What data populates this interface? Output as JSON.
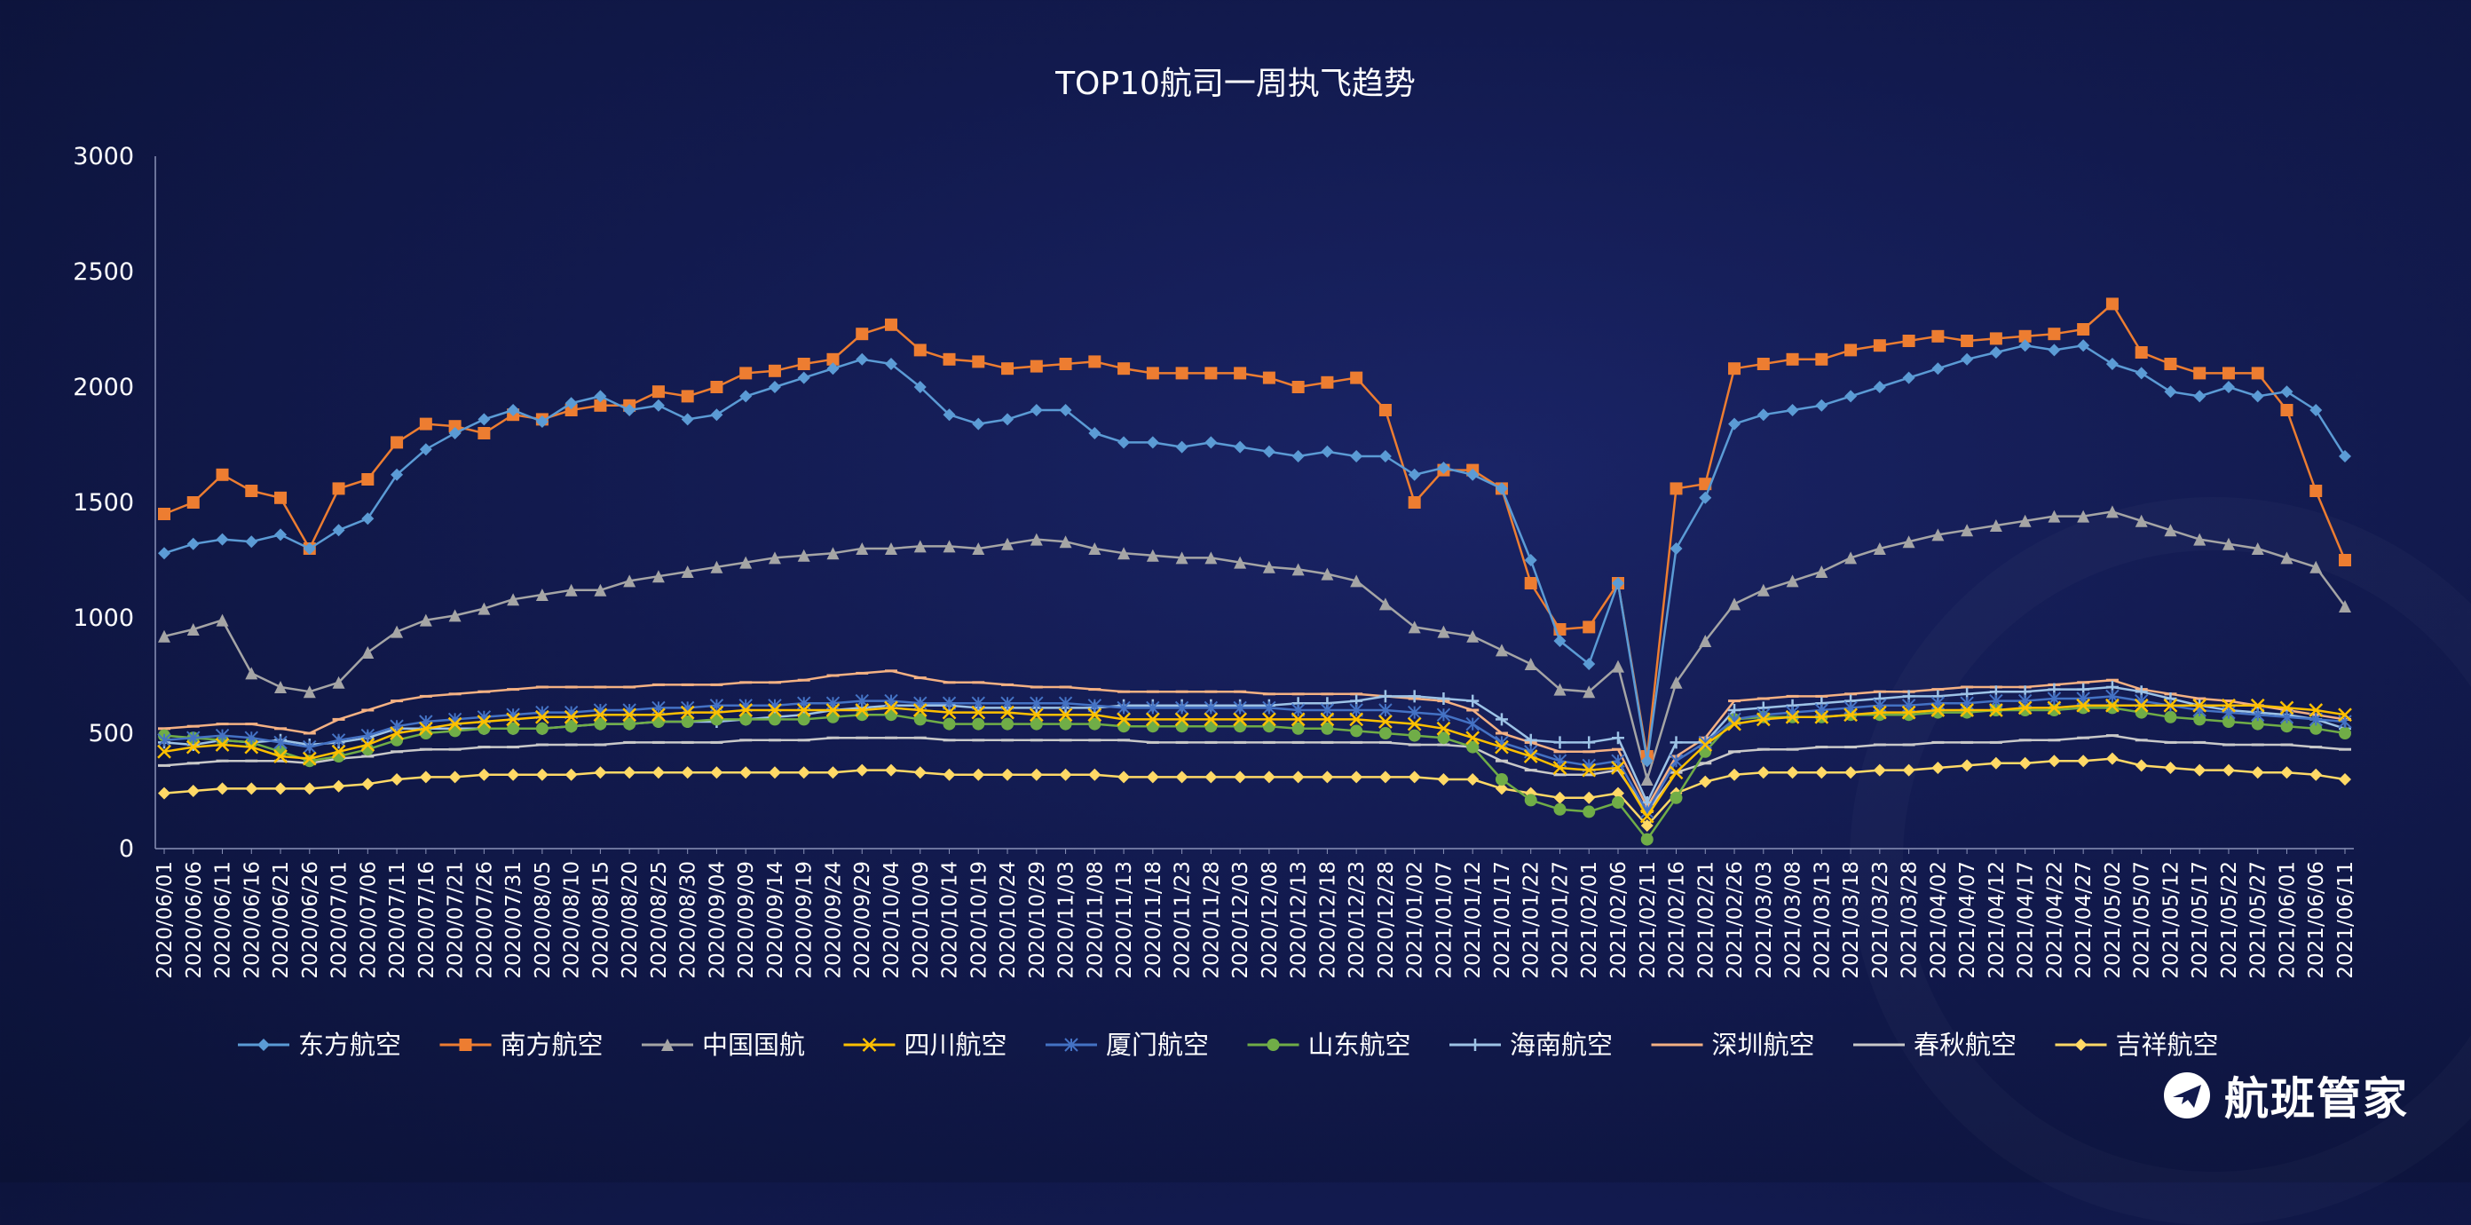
{
  "chart_data": {
    "type": "line",
    "title": "TOP10航司一周执飞趋势",
    "xlabel": "",
    "ylabel": "",
    "ylim": [
      0,
      3000
    ],
    "yticks": [
      0,
      500,
      1000,
      1500,
      2000,
      2500,
      3000
    ],
    "x_tick_labels": [
      "2020/06/01",
      "2020/06/06",
      "2020/06/11",
      "2020/06/16",
      "2020/06/21",
      "2020/06/26",
      "2020/07/01",
      "2020/07/06",
      "2020/07/11",
      "2020/07/16",
      "2020/07/21",
      "2020/07/26",
      "2020/07/31",
      "2020/08/05",
      "2020/08/10",
      "2020/08/15",
      "2020/08/20",
      "2020/08/25",
      "2020/08/30",
      "2020/09/04",
      "2020/09/09",
      "2020/09/14",
      "2020/09/19",
      "2020/09/24",
      "2020/09/29",
      "2020/10/04",
      "2020/10/09",
      "2020/10/14",
      "2020/10/19",
      "2020/10/24",
      "2020/10/29",
      "2020/11/03",
      "2020/11/08",
      "2020/11/13",
      "2020/11/18",
      "2020/11/23",
      "2020/11/28",
      "2020/12/03",
      "2020/12/08",
      "2020/12/13",
      "2020/12/18",
      "2020/12/23",
      "2020/12/28",
      "2021/01/02",
      "2021/01/07",
      "2021/01/12",
      "2021/01/17",
      "2021/01/22",
      "2021/01/27",
      "2021/02/01",
      "2021/02/06",
      "2021/02/11",
      "2021/02/16",
      "2021/02/21",
      "2021/02/26",
      "2021/03/03",
      "2021/03/08",
      "2021/03/13",
      "2021/03/18",
      "2021/03/23",
      "2021/03/28",
      "2021/04/02",
      "2021/04/07",
      "2021/04/12",
      "2021/04/17",
      "2021/04/22",
      "2021/04/27",
      "2021/05/02",
      "2021/05/07",
      "2021/05/12",
      "2021/05/17",
      "2021/05/22",
      "2021/05/27",
      "2021/06/01",
      "2021/06/06",
      "2021/06/11"
    ],
    "legend_position": "bottom",
    "grid": false,
    "x": [
      "2020/06/01",
      "2020/06/06",
      "2020/06/11",
      "2020/06/16",
      "2020/06/21",
      "2020/06/26",
      "2020/07/01",
      "2020/07/06",
      "2020/07/11",
      "2020/07/16",
      "2020/07/21",
      "2020/07/26",
      "2020/07/31",
      "2020/08/05",
      "2020/08/10",
      "2020/08/15",
      "2020/08/20",
      "2020/08/25",
      "2020/08/30",
      "2020/09/04",
      "2020/09/09",
      "2020/09/14",
      "2020/09/19",
      "2020/09/24",
      "2020/09/29",
      "2020/10/04",
      "2020/10/09",
      "2020/10/14",
      "2020/10/19",
      "2020/10/24",
      "2020/10/29",
      "2020/11/03",
      "2020/11/08",
      "2020/11/13",
      "2020/11/18",
      "2020/11/23",
      "2020/11/28",
      "2020/12/03",
      "2020/12/08",
      "2020/12/13",
      "2020/12/18",
      "2020/12/23",
      "2020/12/28",
      "2021/01/02",
      "2021/01/07",
      "2021/01/12",
      "2021/01/17",
      "2021/01/22",
      "2021/01/27",
      "2021/02/01",
      "2021/02/06",
      "2021/02/11",
      "2021/02/16",
      "2021/02/21",
      "2021/02/26",
      "2021/03/03",
      "2021/03/08",
      "2021/03/13",
      "2021/03/18",
      "2021/03/23",
      "2021/03/28",
      "2021/04/02",
      "2021/04/07",
      "2021/04/12",
      "2021/04/17",
      "2021/04/22",
      "2021/04/27",
      "2021/05/02",
      "2021/05/07",
      "2021/05/12",
      "2021/05/17",
      "2021/05/22",
      "2021/05/27",
      "2021/06/01",
      "2021/06/06",
      "2021/06/11"
    ],
    "series": [
      {
        "name": "东方航空",
        "color": "#5b9bd5",
        "marker": "diamond",
        "values": [
          1280,
          1320,
          1340,
          1330,
          1360,
          1300,
          1380,
          1430,
          1620,
          1730,
          1800,
          1860,
          1900,
          1850,
          1930,
          1960,
          1900,
          1920,
          1860,
          1880,
          1960,
          2000,
          2040,
          2080,
          2120,
          2100,
          2000,
          1880,
          1840,
          1860,
          1900,
          1900,
          1800,
          1760,
          1760,
          1740,
          1760,
          1740,
          1720,
          1700,
          1720,
          1700,
          1700,
          1620,
          1650,
          1620,
          1560,
          1250,
          900,
          800,
          1150,
          380,
          1300,
          1520,
          1840,
          1880,
          1900,
          1920,
          1960,
          2000,
          2040,
          2080,
          2120,
          2150,
          2180,
          2160,
          2180,
          2100,
          2060,
          1980,
          1960,
          2000,
          1960,
          1980,
          1900,
          1700
        ]
      },
      {
        "name": "南方航空",
        "color": "#ed7d31",
        "marker": "square",
        "values": [
          1450,
          1500,
          1620,
          1550,
          1520,
          1300,
          1560,
          1600,
          1760,
          1840,
          1830,
          1800,
          1880,
          1860,
          1900,
          1920,
          1920,
          1980,
          1960,
          2000,
          2060,
          2070,
          2100,
          2120,
          2230,
          2270,
          2160,
          2120,
          2110,
          2080,
          2090,
          2100,
          2110,
          2080,
          2060,
          2060,
          2060,
          2060,
          2040,
          2000,
          2020,
          2040,
          1900,
          1500,
          1640,
          1640,
          1560,
          1150,
          950,
          960,
          1150,
          400,
          1560,
          1580,
          2080,
          2100,
          2120,
          2120,
          2160,
          2180,
          2200,
          2220,
          2200,
          2210,
          2220,
          2230,
          2250,
          2360,
          2150,
          2100,
          2060,
          2060,
          2060,
          1900,
          1550,
          1250
        ]
      },
      {
        "name": "中国国航",
        "color": "#a5a5a5",
        "marker": "triangle",
        "values": [
          920,
          950,
          990,
          760,
          700,
          680,
          720,
          850,
          940,
          990,
          1010,
          1040,
          1080,
          1100,
          1120,
          1120,
          1160,
          1180,
          1200,
          1220,
          1240,
          1260,
          1270,
          1280,
          1300,
          1300,
          1310,
          1310,
          1300,
          1320,
          1340,
          1330,
          1300,
          1280,
          1270,
          1260,
          1260,
          1240,
          1220,
          1210,
          1190,
          1160,
          1060,
          960,
          940,
          920,
          860,
          800,
          690,
          680,
          790,
          300,
          720,
          900,
          1060,
          1120,
          1160,
          1200,
          1260,
          1300,
          1330,
          1360,
          1380,
          1400,
          1420,
          1440,
          1440,
          1460,
          1420,
          1380,
          1340,
          1320,
          1300,
          1260,
          1220,
          1050
        ]
      },
      {
        "name": "四川航空",
        "color": "#ffc000",
        "marker": "x",
        "values": [
          420,
          440,
          450,
          440,
          400,
          390,
          420,
          450,
          500,
          520,
          540,
          550,
          560,
          570,
          570,
          580,
          580,
          580,
          590,
          590,
          600,
          600,
          600,
          600,
          600,
          610,
          600,
          590,
          590,
          590,
          580,
          580,
          580,
          560,
          560,
          560,
          560,
          560,
          560,
          560,
          560,
          560,
          550,
          540,
          520,
          480,
          440,
          400,
          350,
          340,
          350,
          140,
          330,
          450,
          540,
          560,
          570,
          570,
          580,
          590,
          590,
          600,
          600,
          600,
          610,
          610,
          620,
          620,
          620,
          620,
          620,
          620,
          620,
          610,
          600,
          580
        ]
      },
      {
        "name": "厦门航空",
        "color": "#4472c4",
        "marker": "asterisk",
        "values": [
          470,
          480,
          490,
          480,
          460,
          440,
          470,
          490,
          530,
          550,
          560,
          570,
          580,
          590,
          590,
          600,
          600,
          610,
          610,
          620,
          620,
          620,
          630,
          630,
          640,
          640,
          630,
          630,
          630,
          630,
          630,
          630,
          620,
          610,
          610,
          610,
          610,
          610,
          610,
          600,
          600,
          600,
          600,
          590,
          580,
          540,
          460,
          420,
          380,
          360,
          380,
          160,
          380,
          460,
          560,
          580,
          590,
          600,
          610,
          620,
          620,
          630,
          630,
          640,
          640,
          650,
          650,
          660,
          640,
          620,
          600,
          590,
          580,
          570,
          560,
          550
        ]
      },
      {
        "name": "山东航空",
        "color": "#70ad47",
        "marker": "circle",
        "values": [
          490,
          480,
          470,
          460,
          420,
          380,
          400,
          430,
          470,
          500,
          510,
          520,
          520,
          520,
          530,
          540,
          540,
          550,
          550,
          560,
          560,
          560,
          560,
          570,
          580,
          580,
          560,
          540,
          540,
          540,
          540,
          540,
          540,
          530,
          530,
          530,
          530,
          530,
          530,
          520,
          520,
          510,
          500,
          490,
          480,
          440,
          300,
          210,
          170,
          160,
          200,
          40,
          220,
          420,
          560,
          570,
          570,
          570,
          580,
          580,
          580,
          590,
          590,
          600,
          600,
          600,
          610,
          610,
          590,
          570,
          560,
          550,
          540,
          530,
          520,
          500
        ]
      },
      {
        "name": "海南航空",
        "color": "#9dc3e6",
        "marker": "plus",
        "values": [
          460,
          450,
          470,
          460,
          470,
          450,
          460,
          480,
          520,
          520,
          520,
          520,
          520,
          520,
          530,
          540,
          540,
          550,
          550,
          550,
          560,
          570,
          580,
          600,
          610,
          620,
          620,
          620,
          610,
          610,
          610,
          610,
          610,
          620,
          620,
          620,
          620,
          620,
          620,
          630,
          630,
          640,
          660,
          660,
          650,
          640,
          560,
          470,
          460,
          460,
          480,
          200,
          460,
          460,
          600,
          610,
          620,
          630,
          640,
          650,
          660,
          660,
          670,
          680,
          680,
          690,
          690,
          700,
          680,
          650,
          620,
          600,
          590,
          580,
          560,
          520
        ]
      },
      {
        "name": "深圳航空",
        "color": "#f4b183",
        "marker": "dash",
        "values": [
          520,
          530,
          540,
          540,
          520,
          500,
          560,
          600,
          640,
          660,
          670,
          680,
          690,
          700,
          700,
          700,
          700,
          710,
          710,
          710,
          720,
          720,
          730,
          750,
          760,
          770,
          740,
          720,
          720,
          710,
          700,
          700,
          690,
          680,
          680,
          680,
          680,
          680,
          670,
          670,
          670,
          670,
          660,
          650,
          640,
          600,
          500,
          460,
          420,
          420,
          430,
          180,
          400,
          480,
          640,
          650,
          660,
          660,
          670,
          680,
          680,
          690,
          700,
          700,
          700,
          710,
          720,
          730,
          690,
          670,
          650,
          640,
          620,
          600,
          580,
          560
        ]
      },
      {
        "name": "春秋航空",
        "color": "#c9c9c9",
        "marker": "dash",
        "values": [
          360,
          370,
          380,
          380,
          380,
          370,
          390,
          400,
          420,
          430,
          430,
          440,
          440,
          450,
          450,
          450,
          460,
          460,
          460,
          460,
          470,
          470,
          470,
          480,
          480,
          480,
          480,
          470,
          470,
          470,
          470,
          470,
          470,
          470,
          460,
          460,
          460,
          460,
          460,
          460,
          460,
          460,
          460,
          450,
          450,
          440,
          380,
          340,
          320,
          320,
          340,
          160,
          330,
          370,
          420,
          430,
          430,
          440,
          440,
          450,
          450,
          460,
          460,
          460,
          470,
          470,
          480,
          490,
          470,
          460,
          460,
          450,
          450,
          450,
          440,
          430
        ]
      },
      {
        "name": "吉祥航空",
        "color": "#ffd966",
        "marker": "diamond",
        "values": [
          240,
          250,
          260,
          260,
          260,
          260,
          270,
          280,
          300,
          310,
          310,
          320,
          320,
          320,
          320,
          330,
          330,
          330,
          330,
          330,
          330,
          330,
          330,
          330,
          340,
          340,
          330,
          320,
          320,
          320,
          320,
          320,
          320,
          310,
          310,
          310,
          310,
          310,
          310,
          310,
          310,
          310,
          310,
          310,
          300,
          300,
          260,
          240,
          220,
          220,
          240,
          100,
          240,
          290,
          320,
          330,
          330,
          330,
          330,
          340,
          340,
          350,
          360,
          370,
          370,
          380,
          380,
          390,
          360,
          350,
          340,
          340,
          330,
          330,
          320,
          300
        ]
      }
    ]
  },
  "watermark": {
    "text": "航班管家"
  }
}
